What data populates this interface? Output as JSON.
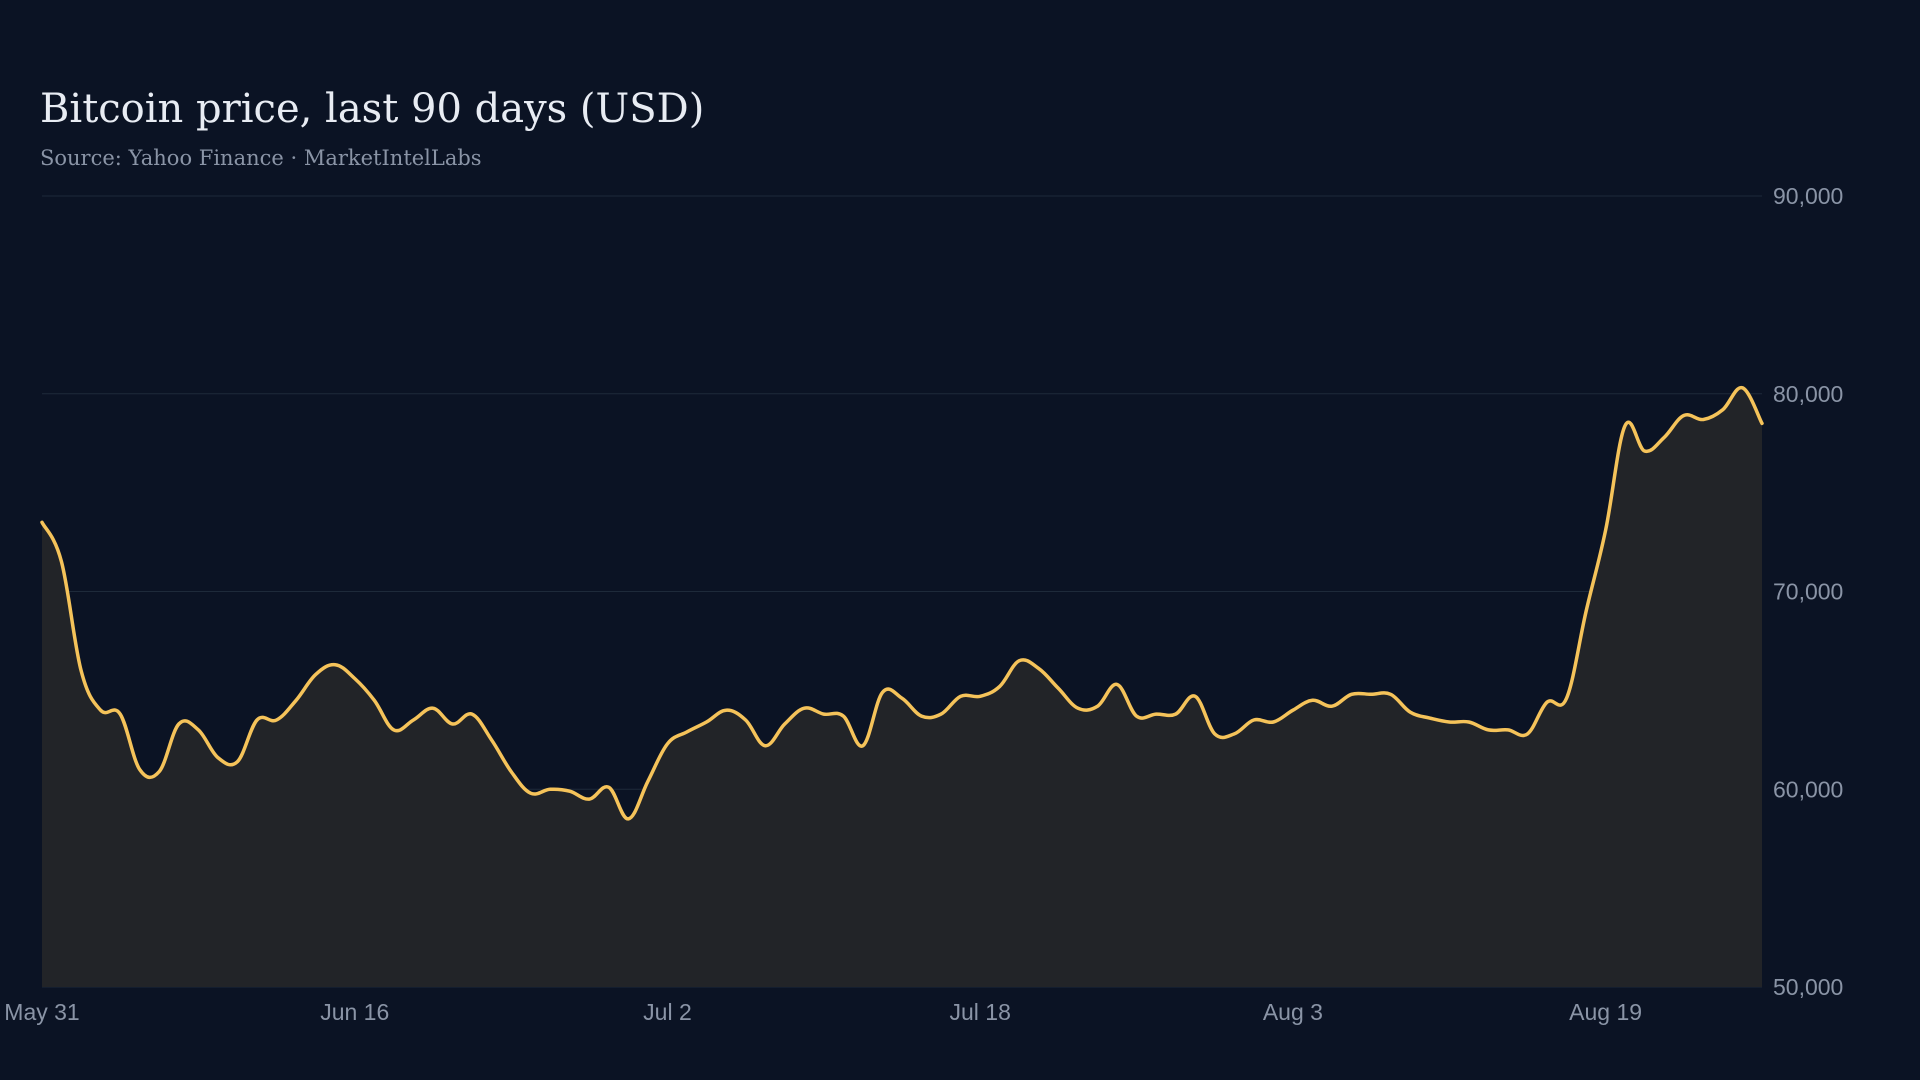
{
  "chart_data": {
    "type": "area",
    "title": "Bitcoin price, last 90 days (USD)",
    "subtitle": "Source: Yahoo Finance · MarketIntelLabs",
    "xlabel": "",
    "ylabel": "",
    "x_range": [
      "2024-05-31",
      "2024-08-27"
    ],
    "ylim": [
      50000,
      90000
    ],
    "y_ticks": [
      {
        "value": 50000,
        "label": "50,000"
      },
      {
        "value": 60000,
        "label": "60,000"
      },
      {
        "value": 70000,
        "label": "70,000"
      },
      {
        "value": 80000,
        "label": "80,000"
      },
      {
        "value": 90000,
        "label": "90,000"
      }
    ],
    "x_ticks": [
      {
        "value": "2024-05-31",
        "label": "May 31"
      },
      {
        "value": "2024-06-16",
        "label": "Jun 16"
      },
      {
        "value": "2024-07-02",
        "label": "Jul  2"
      },
      {
        "value": "2024-07-18",
        "label": "Jul 18"
      },
      {
        "value": "2024-08-03",
        "label": "Aug  3"
      },
      {
        "value": "2024-08-19",
        "label": "Aug 19"
      }
    ],
    "grid": true,
    "y_axis_position": "right",
    "line_color": "#f5c35a",
    "fill_color": "#222428",
    "grid_color": "#1e2a3a",
    "series": [
      {
        "x": [
          "2024-05-31",
          "2024-06-01",
          "2024-06-02",
          "2024-06-03",
          "2024-06-04",
          "2024-06-05",
          "2024-06-06",
          "2024-06-07",
          "2024-06-08",
          "2024-06-09",
          "2024-06-10",
          "2024-06-11",
          "2024-06-12",
          "2024-06-13",
          "2024-06-14",
          "2024-06-15",
          "2024-06-16",
          "2024-06-17",
          "2024-06-18",
          "2024-06-19",
          "2024-06-20",
          "2024-06-21",
          "2024-06-22",
          "2024-06-23",
          "2024-06-24",
          "2024-06-25",
          "2024-06-26",
          "2024-06-27",
          "2024-06-28",
          "2024-06-29",
          "2024-06-30",
          "2024-07-01",
          "2024-07-02",
          "2024-07-03",
          "2024-07-04",
          "2024-07-05",
          "2024-07-06",
          "2024-07-07",
          "2024-07-08",
          "2024-07-09",
          "2024-07-10",
          "2024-07-11",
          "2024-07-12",
          "2024-07-13",
          "2024-07-14",
          "2024-07-15",
          "2024-07-16",
          "2024-07-17",
          "2024-07-18",
          "2024-07-19",
          "2024-07-20",
          "2024-07-21",
          "2024-07-22",
          "2024-07-23",
          "2024-07-24",
          "2024-07-25",
          "2024-07-26",
          "2024-07-27",
          "2024-07-28",
          "2024-07-29",
          "2024-07-30",
          "2024-07-31",
          "2024-08-01",
          "2024-08-02",
          "2024-08-03",
          "2024-08-04",
          "2024-08-05",
          "2024-08-06",
          "2024-08-07",
          "2024-08-08",
          "2024-08-09",
          "2024-08-10",
          "2024-08-11",
          "2024-08-12",
          "2024-08-13",
          "2024-08-14",
          "2024-08-15",
          "2024-08-16",
          "2024-08-17",
          "2024-08-18",
          "2024-08-19",
          "2024-08-20",
          "2024-08-21",
          "2024-08-22",
          "2024-08-23",
          "2024-08-24",
          "2024-08-25",
          "2024-08-26",
          "2024-08-27"
        ],
        "values": [
          73500,
          71500,
          66000,
          64000,
          63800,
          61000,
          60900,
          63300,
          63000,
          61600,
          61400,
          63500,
          63500,
          64500,
          65800,
          66300,
          65600,
          64500,
          63000,
          63500,
          64100,
          63300,
          63800,
          62500,
          60900,
          59800,
          60000,
          59900,
          59500,
          60100,
          58500,
          60400,
          62300,
          62900,
          63400,
          64000,
          63500,
          62200,
          63300,
          64100,
          63800,
          63700,
          62200,
          64900,
          64600,
          63700,
          63800,
          64700,
          64700,
          65200,
          66500,
          66100,
          65100,
          64100,
          64200,
          65300,
          63700,
          63800,
          63800,
          64700,
          62800,
          62800,
          63500,
          63400,
          64000,
          64500,
          64200,
          64800,
          64800,
          64800,
          63900,
          63600,
          63400,
          63400,
          63000,
          63000,
          62800,
          64400,
          64600,
          69000,
          73100,
          78400,
          77100,
          77800,
          78900,
          78700,
          79200,
          80300,
          78500
        ]
      }
    ]
  }
}
